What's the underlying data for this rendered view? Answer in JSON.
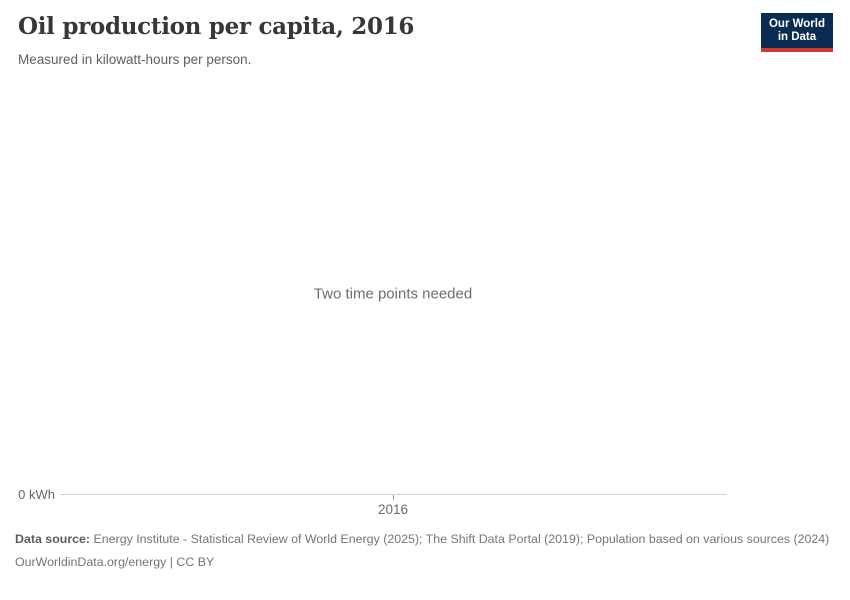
{
  "header": {
    "title": "Oil production per capita, 2016",
    "subtitle": "Measured in kilowatt-hours per person.",
    "logo": {
      "line1": "Our World",
      "line2": "in Data"
    }
  },
  "chart": {
    "empty_message": "Two time points needed",
    "y_zero_label": "0 kWh",
    "x_tick_label": "2016"
  },
  "chart_data": {
    "type": "line",
    "title": "Oil production per capita, 2016",
    "subtitle": "Measured in kilowatt-hours per person.",
    "unit": "kilowatt-hours per person",
    "series": [],
    "x_ticks": [
      "2016"
    ],
    "y_ticks": [
      "0 kWh"
    ],
    "xlim": [
      2016,
      2016
    ],
    "ylim": [
      0,
      null
    ],
    "grid": false,
    "legend_position": "none",
    "empty_state_message": "Two time points needed"
  },
  "footer": {
    "data_source_label": "Data source:",
    "data_source_text": "Energy Institute - Statistical Review of World Energy (2025); The Shift Data Portal (2019); Population based on various sources (2024)",
    "url": "OurWorldinData.org/energy",
    "separator": " | ",
    "license": "CC BY"
  },
  "colors": {
    "logo_bg": "#0a2b52",
    "logo_accent": "#d7382e",
    "title": "#373737",
    "subtitle": "#5f5f5f",
    "message": "#6d6d6d",
    "axis_label": "#696969",
    "axis_line": "#d4d4d4",
    "footer_text": "#757575"
  }
}
